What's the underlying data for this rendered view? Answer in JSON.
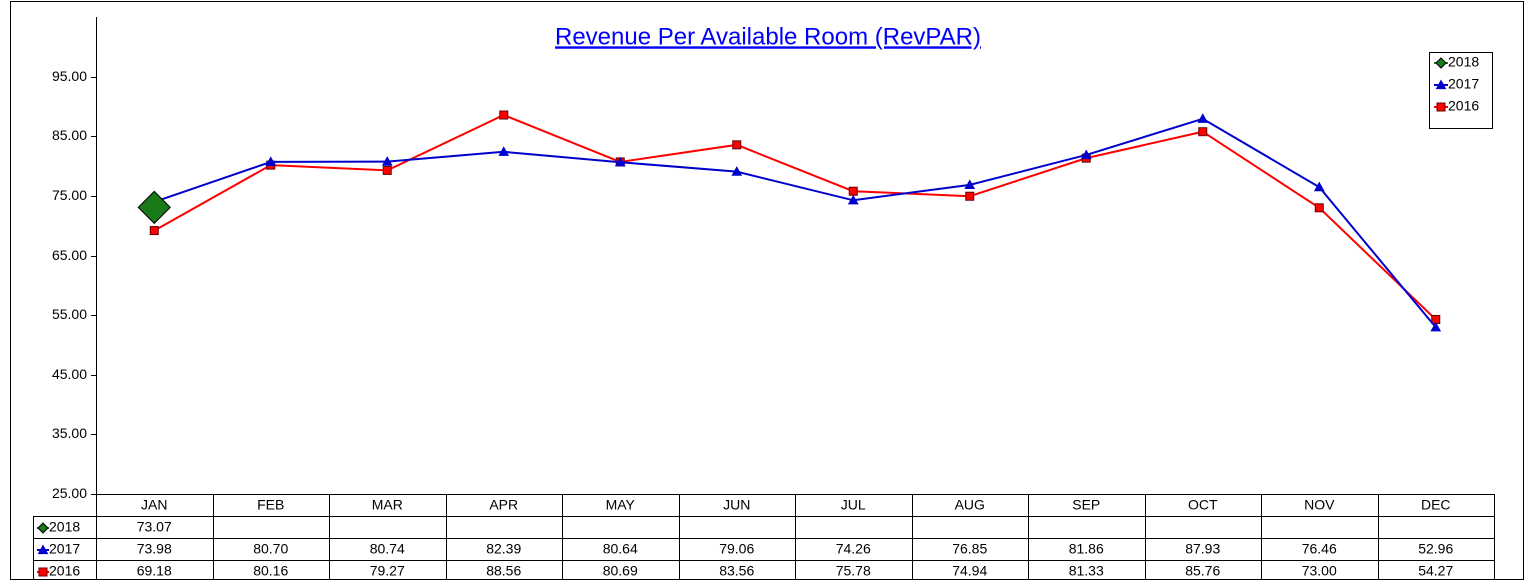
{
  "chart_data": {
    "type": "line",
    "title": "Revenue Per Available Room (RevPAR)",
    "categories": [
      "JAN",
      "FEB",
      "MAR",
      "APR",
      "MAY",
      "JUN",
      "JUL",
      "AUG",
      "SEP",
      "OCT",
      "NOV",
      "DEC"
    ],
    "series": [
      {
        "name": "2018",
        "color": "#1a7a1a",
        "marker": "diamond",
        "values": [
          73.07,
          null,
          null,
          null,
          null,
          null,
          null,
          null,
          null,
          null,
          null,
          null
        ],
        "value_labels": [
          "73.07",
          null,
          null,
          null,
          null,
          null,
          null,
          null,
          null,
          null,
          null,
          null
        ]
      },
      {
        "name": "2017",
        "color": "#0000cc",
        "marker": "triangle",
        "values": [
          73.98,
          80.7,
          80.74,
          82.39,
          80.64,
          79.06,
          74.26,
          76.85,
          81.86,
          87.93,
          76.46,
          52.96
        ],
        "value_labels": [
          "73.98",
          "80.70",
          "80.74",
          "82.39",
          "80.64",
          "79.06",
          "74.26",
          "76.85",
          "81.86",
          "87.93",
          "76.46",
          "52.96"
        ]
      },
      {
        "name": "2016",
        "color": "#ff0000",
        "marker": "square",
        "values": [
          69.18,
          80.16,
          79.27,
          88.56,
          80.69,
          83.56,
          75.78,
          74.94,
          81.33,
          85.76,
          73.0,
          54.27
        ],
        "value_labels": [
          "69.18",
          "80.16",
          "79.27",
          "88.56",
          "80.69",
          "83.56",
          "75.78",
          "74.94",
          "81.33",
          "85.76",
          "73.00",
          "54.27"
        ]
      }
    ],
    "ylim": [
      25,
      105
    ],
    "yticks": [
      {
        "value": 25,
        "label": "25.00"
      },
      {
        "value": 35,
        "label": "35.00"
      },
      {
        "value": 45,
        "label": "45.00"
      },
      {
        "value": 55,
        "label": "55.00"
      },
      {
        "value": 65,
        "label": "65.00"
      },
      {
        "value": 75,
        "label": "75.00"
      },
      {
        "value": 85,
        "label": "85.00"
      },
      {
        "value": 95,
        "label": "95.00"
      }
    ],
    "grid": false,
    "legend": "top-right"
  }
}
